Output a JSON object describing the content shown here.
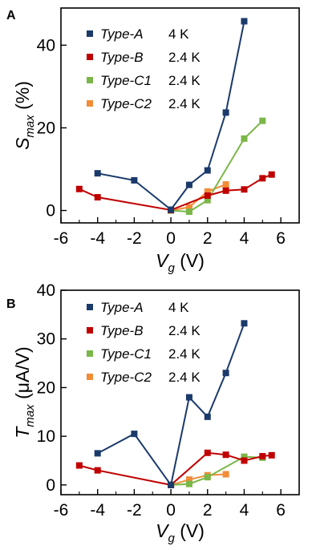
{
  "colors": {
    "type_a": "#1b3a6b",
    "type_b": "#c00000",
    "type_c1": "#7ab648",
    "type_c2": "#f28c38"
  },
  "xlabel": {
    "main": "V",
    "sub": "g",
    "unit": " (V)"
  },
  "chart_data": [
    {
      "panel_label": "A",
      "type": "line",
      "ylabel": {
        "main": "S",
        "sub": "max",
        "unit": " (%)"
      },
      "xlim": [
        -6,
        7
      ],
      "ylim": [
        -3,
        49
      ],
      "xticks": [
        -6,
        -4,
        -2,
        0,
        2,
        4,
        6
      ],
      "yticks": [
        0,
        20,
        40
      ],
      "grid": false,
      "legend_position": "top-center",
      "series": [
        {
          "name": "Type-A",
          "temp": "4 K",
          "color_key": "type_a",
          "points": [
            [
              -4,
              9
            ],
            [
              -2,
              7.3
            ],
            [
              0,
              0.2
            ],
            [
              1,
              6.2
            ],
            [
              2,
              9.7
            ],
            [
              3,
              23.7
            ],
            [
              4,
              45.8
            ]
          ]
        },
        {
          "name": "Type-B",
          "temp": "2.4 K",
          "color_key": "type_b",
          "points": [
            [
              -5,
              5.2
            ],
            [
              -4,
              3.2
            ],
            [
              0,
              0.1
            ],
            [
              2,
              3.6
            ],
            [
              3,
              4.8
            ],
            [
              4,
              5.1
            ],
            [
              5,
              7.8
            ],
            [
              5.5,
              8.7
            ]
          ]
        },
        {
          "name": "Type-C1",
          "temp": "2.4 K",
          "color_key": "type_c1",
          "points": [
            [
              0,
              0
            ],
            [
              1,
              -0.3
            ],
            [
              2,
              2.5
            ],
            [
              4,
              17.4
            ],
            [
              5,
              21.7
            ]
          ]
        },
        {
          "name": "Type-C2",
          "temp": "2.4 K",
          "color_key": "type_c2",
          "points": [
            [
              0,
              0
            ],
            [
              1,
              0.8
            ],
            [
              2,
              4.6
            ],
            [
              3,
              6.3
            ]
          ]
        }
      ]
    },
    {
      "panel_label": "B",
      "type": "line",
      "ylabel": {
        "main": "T",
        "sub": "max",
        "unit": " (μA/V)"
      },
      "xlim": [
        -6,
        7
      ],
      "ylim": [
        -2,
        40
      ],
      "xticks": [
        -6,
        -4,
        -2,
        0,
        2,
        4,
        6
      ],
      "yticks": [
        0,
        10,
        20,
        30,
        40
      ],
      "grid": false,
      "legend_position": "top-center",
      "series": [
        {
          "name": "Type-A",
          "temp": "4 K",
          "color_key": "type_a",
          "points": [
            [
              -4,
              6.5
            ],
            [
              -2,
              10.5
            ],
            [
              0,
              0
            ],
            [
              1,
              18
            ],
            [
              2,
              14
            ],
            [
              3,
              23
            ],
            [
              4,
              33.2
            ]
          ]
        },
        {
          "name": "Type-B",
          "temp": "2.4 K",
          "color_key": "type_b",
          "points": [
            [
              -5,
              4
            ],
            [
              -4,
              3
            ],
            [
              0,
              0
            ],
            [
              2,
              6.6
            ],
            [
              3,
              6.2
            ],
            [
              4,
              5
            ],
            [
              5,
              5.9
            ],
            [
              5.5,
              6.1
            ]
          ]
        },
        {
          "name": "Type-C1",
          "temp": "2.4 K",
          "color_key": "type_c1",
          "points": [
            [
              0,
              0
            ],
            [
              1,
              0.2
            ],
            [
              2,
              1.6
            ],
            [
              4,
              5.8
            ],
            [
              5,
              5.6
            ]
          ]
        },
        {
          "name": "Type-C2",
          "temp": "2.4 K",
          "color_key": "type_c2",
          "points": [
            [
              0,
              0
            ],
            [
              1,
              1.1
            ],
            [
              2,
              2
            ],
            [
              3,
              2.2
            ]
          ]
        }
      ]
    }
  ]
}
